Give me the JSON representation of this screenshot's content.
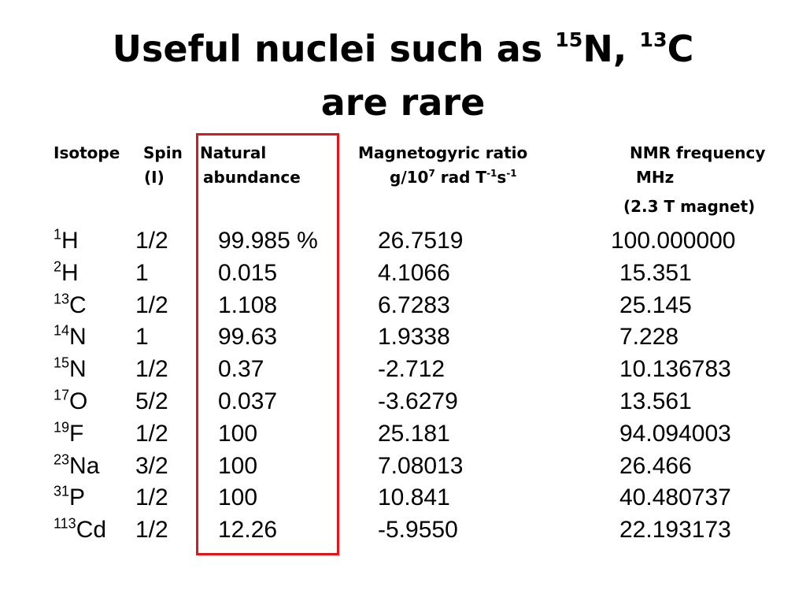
{
  "title": {
    "line1": [
      {
        "text": "Useful nuclei such as "
      },
      {
        "sup": "15"
      },
      {
        "text": "N, "
      },
      {
        "sup": "13"
      },
      {
        "text": "C"
      }
    ],
    "line2": "are rare"
  },
  "header": {
    "isotope": [
      "Isotope"
    ],
    "spin": [
      "Spin",
      "(I)"
    ],
    "abundance": [
      "Natural",
      "abundance"
    ],
    "ratio": [
      "Magnetogyric ratio",
      [
        {
          "text": "g/10"
        },
        {
          "sup": "7"
        },
        {
          "text": " rad T"
        },
        {
          "sup": "-1"
        },
        {
          "text": "s"
        },
        {
          "sup": "-1"
        }
      ]
    ],
    "frequency": [
      "NMR frequency",
      "MHz",
      "(2.3 T magnet)"
    ]
  },
  "table": {
    "rows": [
      [
        [
          {
            "sup": "1"
          },
          {
            "text": "H"
          }
        ],
        "1/2",
        "99.985 %",
        "26.7519",
        "100.000000"
      ],
      [
        [
          {
            "sup": "2"
          },
          {
            "text": "H"
          }
        ],
        "1",
        "0.015",
        "4.1066",
        "15.351"
      ],
      [
        [
          {
            "sup": "13"
          },
          {
            "text": "C"
          }
        ],
        "1/2",
        "1.108",
        "6.7283",
        "25.145"
      ],
      [
        [
          {
            "sup": "14"
          },
          {
            "text": "N"
          }
        ],
        "1",
        "99.63",
        "1.9338",
        "7.228"
      ],
      [
        [
          {
            "sup": "15"
          },
          {
            "text": "N"
          }
        ],
        "1/2",
        "0.37",
        "-2.712",
        "10.136783"
      ],
      [
        [
          {
            "sup": "17"
          },
          {
            "text": "O"
          }
        ],
        "5/2",
        "0.037",
        "-3.6279",
        "13.561"
      ],
      [
        [
          {
            "sup": "19"
          },
          {
            "text": "F"
          }
        ],
        "1/2",
        "100",
        "25.181",
        "94.094003"
      ],
      [
        [
          {
            "sup": "23"
          },
          {
            "text": "Na"
          }
        ],
        "3/2",
        "100",
        "7.08013",
        "26.466"
      ],
      [
        [
          {
            "sup": "31"
          },
          {
            "text": "P"
          }
        ],
        "1/2",
        "100",
        "10.841",
        "40.480737"
      ],
      [
        [
          {
            "sup": "113"
          },
          {
            "text": "Cd"
          }
        ],
        "1/2",
        "12.26",
        "-5.9550",
        "22.193173"
      ]
    ]
  }
}
